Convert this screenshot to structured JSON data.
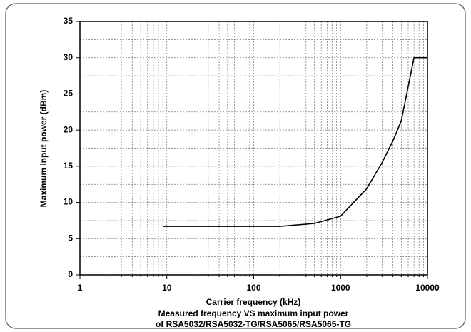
{
  "chart_data": {
    "type": "line",
    "x_label": "Carrier frequency (kHz)",
    "y_label": "Maximum input power (dBm)",
    "caption": [
      "Measured frequency VS maximum input power",
      "of RSA5032/RSA5032-TG/RSA5065/RSA5065-TG"
    ],
    "x_scale": "log",
    "xlim": [
      1,
      10000
    ],
    "ylim": [
      0,
      35
    ],
    "xticks": [
      1,
      10,
      100,
      1000,
      10000
    ],
    "yticks": [
      0,
      5,
      10,
      15,
      20,
      25,
      30,
      35
    ],
    "x_minor_ticks": [
      2,
      3,
      4,
      5,
      6,
      7,
      8,
      9,
      20,
      30,
      40,
      50,
      60,
      70,
      80,
      90,
      200,
      300,
      400,
      500,
      600,
      700,
      800,
      900,
      2000,
      3000,
      4000,
      5000,
      6000,
      7000,
      8000,
      9000
    ],
    "y_minor_ticks": [
      2.5,
      7.5,
      12.5,
      17.5,
      22.5,
      27.5,
      32.5
    ],
    "grid": true,
    "series": [
      {
        "color": "#000000",
        "x": [
          9,
          200,
          500,
          1000,
          2000,
          3000,
          4000,
          5000,
          7000,
          10000
        ],
        "values": [
          6.7,
          6.7,
          7.1,
          8.1,
          11.9,
          15.5,
          18.5,
          21.3,
          30,
          30
        ]
      }
    ]
  }
}
